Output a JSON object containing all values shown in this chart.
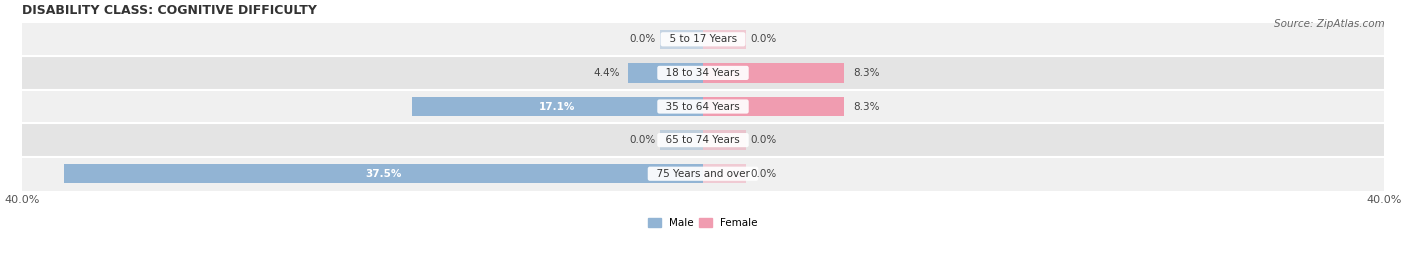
{
  "title": "DISABILITY CLASS: COGNITIVE DIFFICULTY",
  "source": "Source: ZipAtlas.com",
  "categories": [
    "5 to 17 Years",
    "18 to 34 Years",
    "35 to 64 Years",
    "65 to 74 Years",
    "75 Years and over"
  ],
  "male_values": [
    0.0,
    4.4,
    17.1,
    0.0,
    37.5
  ],
  "female_values": [
    0.0,
    8.3,
    8.3,
    0.0,
    0.0
  ],
  "male_color": "#92b4d4",
  "female_color": "#f09cb0",
  "row_bg_colors": [
    "#f0f0f0",
    "#e4e4e4"
  ],
  "axis_limit": 40.0,
  "bar_height": 0.58,
  "title_fontsize": 9,
  "label_fontsize": 7.5,
  "tick_fontsize": 8,
  "source_fontsize": 7.5,
  "category_fontsize": 7.5,
  "zero_stub": 2.5
}
